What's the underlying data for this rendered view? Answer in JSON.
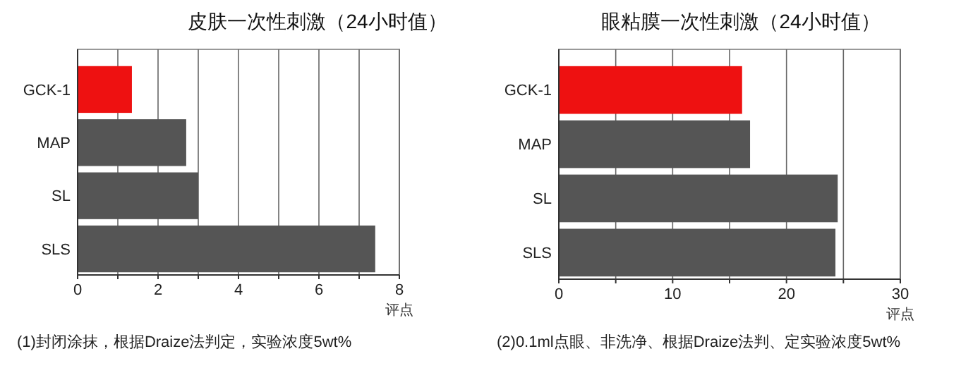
{
  "chart_data": [
    {
      "type": "bar",
      "orientation": "horizontal",
      "title": "皮肤一次性刺激（24小时值）",
      "xlabel": "评点",
      "categories": [
        "GCK-1",
        "MAP",
        "SL",
        "SLS"
      ],
      "values": [
        1.35,
        2.7,
        3.0,
        7.4
      ],
      "colors": [
        "#ee1111",
        "#555555",
        "#555555",
        "#555555"
      ],
      "xlim": [
        0,
        8
      ],
      "xticks": [
        0,
        {
          "value": 1,
          "label": null
        },
        2,
        {
          "value": 3,
          "label": null
        },
        4,
        {
          "value": 5,
          "label": null
        },
        6,
        {
          "value": 7,
          "label": null
        },
        8
      ],
      "grid": "x",
      "annotations": [
        "(1)封闭涂抹，根据Draize法判定，实验浓度5wt%"
      ]
    },
    {
      "type": "bar",
      "orientation": "horizontal",
      "title": "眼粘膜一次性刺激（24小时值）",
      "xlabel": "评点",
      "categories": [
        "GCK-1",
        "MAP",
        "SL",
        "SLS"
      ],
      "values": [
        16.1,
        16.8,
        24.5,
        24.3
      ],
      "colors": [
        "#ee1111",
        "#555555",
        "#555555",
        "#555555"
      ],
      "xlim": [
        0,
        30
      ],
      "xticks": [
        0,
        {
          "value": 5,
          "label": null
        },
        10,
        {
          "value": 15,
          "label": null
        },
        20,
        {
          "value": 25,
          "label": null
        },
        30
      ],
      "grid": "x",
      "annotations": [
        "(2)0.1ml点眼、非洗净、根据Draize法判、定实验浓度5wt%"
      ]
    }
  ]
}
